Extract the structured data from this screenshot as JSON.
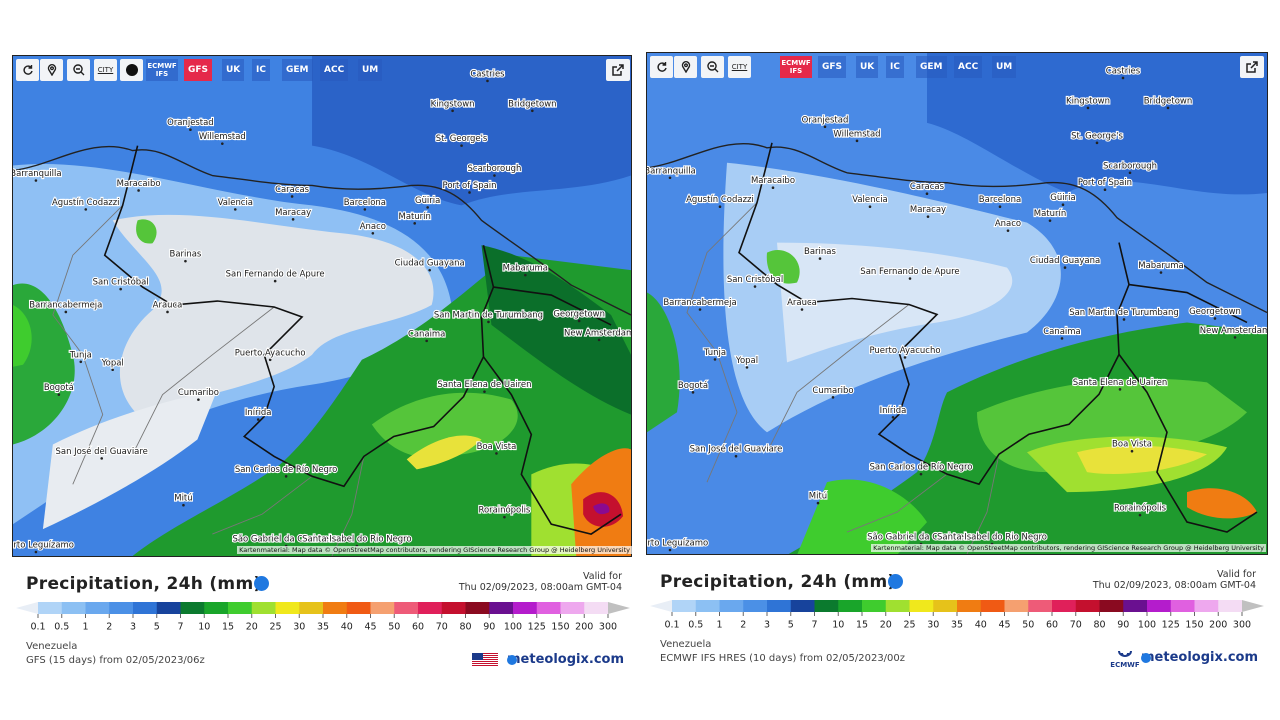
{
  "panels": [
    {
      "toolbar": {
        "city": "CITY",
        "models": [
          {
            "label": "ECMWF IFS",
            "active": false
          },
          {
            "label": "GFS",
            "active": true
          },
          {
            "label": "UK",
            "active": false
          },
          {
            "label": "IC",
            "active": false
          },
          {
            "label": "GEM",
            "active": false
          },
          {
            "label": "ACC",
            "active": false
          },
          {
            "label": "UM",
            "active": false
          }
        ]
      },
      "cities": [
        "Castries",
        "Kingstown",
        "Bridgetown",
        "Oranjestad",
        "Willemstad",
        "St. George's",
        "Scarborough",
        "Port of Spain",
        "Barranquilla",
        "Maracaibo",
        "Caracas",
        "Valencia",
        "Maracay",
        "Barcelona",
        "Güiria",
        "Maturín",
        "Agustín Codazzi",
        "Anaco",
        "Barinas",
        "Ciudad Guayana",
        "Mabaruma",
        "San Cristóbal",
        "San Fernando de Apure",
        "Barrancabermeja",
        "Arauca",
        "San Martin de Turumbang",
        "Georgetown",
        "New Amsterdam",
        "Canaima",
        "Tunja",
        "Yopal",
        "Puerto Ayacucho",
        "Bogotá",
        "Santa Elena de Uairen",
        "Cumaribo",
        "Inírida",
        "Boa Vista",
        "San José del Guaviare",
        "San Carlos de Río Negro",
        "Mitú",
        "Rorainópolis",
        "São Gabriel da Cachoeira",
        "Santa Isabel do Rio Negro",
        "Puerto Leguízamo"
      ],
      "attribution": "Kartenmaterial: Map data © OpenStreetMap contributors, rendering GIScience Research Group @ Heidelberg University",
      "title": "Precipitation, 24h (mm)",
      "valid_label": "Valid for",
      "valid_time": "Thu 02/09/2023, 08:00am GMT-04",
      "region": "Venezuela",
      "model_run": "GFS (15 days) from 02/05/2023/06z",
      "brand": "meteologix.com"
    },
    {
      "toolbar": {
        "city": "CITY",
        "models": [
          {
            "label": "ECMWF IFS",
            "active": true
          },
          {
            "label": "GFS",
            "active": false
          },
          {
            "label": "UK",
            "active": false
          },
          {
            "label": "IC",
            "active": false
          },
          {
            "label": "GEM",
            "active": false
          },
          {
            "label": "ACC",
            "active": false
          },
          {
            "label": "UM",
            "active": false
          }
        ]
      },
      "cities": [
        "Castries",
        "Kingstown",
        "Bridgetown",
        "Oranjestad",
        "Willemstad",
        "St. George's",
        "Scarborough",
        "Port of Spain",
        "Barranquilla",
        "Maracaibo",
        "Caracas",
        "Valencia",
        "Maracay",
        "Barcelona",
        "Güiria",
        "Maturín",
        "Agustín Codazzi",
        "Anaco",
        "Barinas",
        "Ciudad Guayana",
        "Mabaruma",
        "San Cristóbal",
        "San Fernando de Apure",
        "Barrancabermeja",
        "Arauca",
        "San Martin de Turumbang",
        "Georgetown",
        "New Amsterdam",
        "Canaima",
        "Tunja",
        "Yopal",
        "Puerto Ayacucho",
        "Bogotá",
        "Santa Elena de Uairen",
        "Cumaribo",
        "Inírida",
        "Boa Vista",
        "San José del Guaviare",
        "San Carlos de Río Negro",
        "Mitú",
        "Rorainópolis",
        "São Gabriel da Cachoeira",
        "Santa Isabel do Rio Negro",
        "Puerto Leguízamo"
      ],
      "attribution": "Kartenmaterial: Map data © OpenStreetMap contributors, rendering GIScience Research Group @ Heidelberg University",
      "title": "Precipitation, 24h (mm)",
      "valid_label": "Valid for",
      "valid_time": "Thu 02/09/2023, 08:00am GMT-04",
      "region": "Venezuela",
      "model_run": "ECMWF IFS HRES (10 days) from 02/05/2023/00z",
      "brand": "meteologix.com",
      "logo_text": "ECMWF"
    }
  ],
  "color_scale": {
    "labels": [
      0.1,
      0.5,
      1,
      2,
      3,
      5,
      7,
      10,
      15,
      20,
      25,
      30,
      35,
      40,
      45,
      50,
      60,
      70,
      80,
      90,
      100,
      125,
      150,
      200,
      300
    ],
    "colors": [
      "#e8eef6",
      "#b0d4f7",
      "#8cc0f3",
      "#6aa8ee",
      "#4b90e6",
      "#2f74d6",
      "#17439c",
      "#0b7a2e",
      "#19a52a",
      "#3fcc2e",
      "#a0e030",
      "#f0e81c",
      "#e6c21a",
      "#f07c12",
      "#f05a14",
      "#f5a070",
      "#ee5b78",
      "#e0205a",
      "#c4102e",
      "#8a0a20",
      "#6a1090",
      "#b41ccc",
      "#e060e0",
      "#eea8ee",
      "#f4dcf4",
      "#c0c0c0"
    ]
  }
}
